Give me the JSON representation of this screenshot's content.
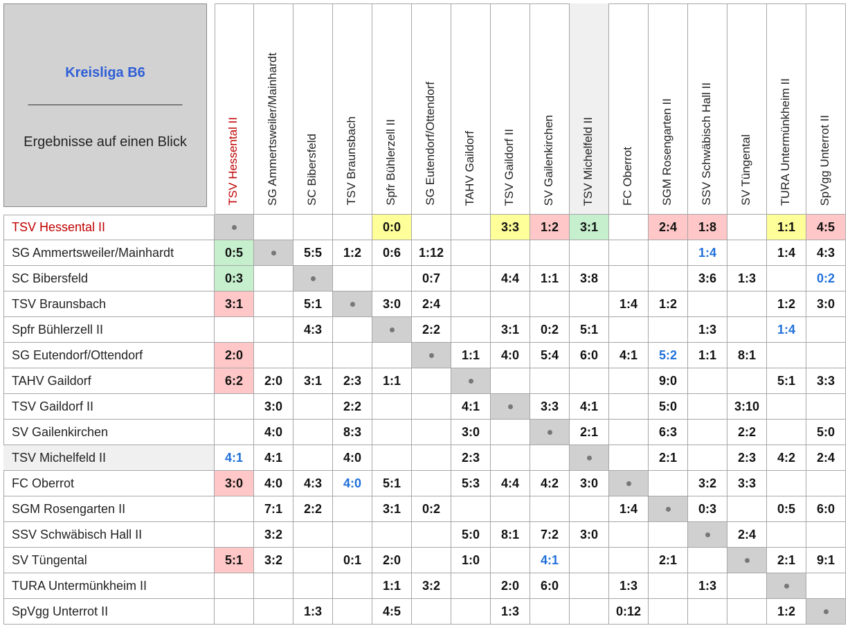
{
  "header": {
    "title": "Kreisliga B6",
    "separator": "_________________________",
    "subtitle": "Ergebnisse auf einen Blick",
    "title_color": "#2f5fd6"
  },
  "teams": [
    {
      "name": "TSV Hessental II",
      "color": "#c00000"
    },
    {
      "name": "SG Ammertsweiler/Mainhardt"
    },
    {
      "name": "SC Bibersfeld"
    },
    {
      "name": "TSV Braunsbach"
    },
    {
      "name": "Spfr Bühlerzell II"
    },
    {
      "name": "SG Eutendorf/Ottendorf"
    },
    {
      "name": "TAHV Gaildorf"
    },
    {
      "name": "TSV Gaildorf II"
    },
    {
      "name": "SV Gailenkirchen"
    },
    {
      "name": "TSV Michelfeld II",
      "fill": "#f0f0f0"
    },
    {
      "name": "FC Oberrot"
    },
    {
      "name": "SGM Rosengarten II"
    },
    {
      "name": "SSV Schwäbisch Hall II"
    },
    {
      "name": "SV Tüngental"
    },
    {
      "name": "TURA Untermünkheim II"
    },
    {
      "name": "SpVgg Unterrot II"
    }
  ],
  "results": [
    [
      null,
      null,
      null,
      null,
      {
        "text": "0:0",
        "fill": "#ffff99"
      },
      null,
      null,
      {
        "text": "3:3",
        "fill": "#ffff99"
      },
      {
        "text": "1:2",
        "fill": "#ffc7c7"
      },
      {
        "text": "3:1",
        "fill": "#c6efce"
      },
      null,
      {
        "text": "2:4",
        "fill": "#ffc7c7"
      },
      {
        "text": "1:8",
        "fill": "#ffc7c7"
      },
      null,
      {
        "text": "1:1",
        "fill": "#ffff99"
      },
      {
        "text": "4:5",
        "fill": "#ffc7c7"
      }
    ],
    [
      {
        "text": "0:5",
        "fill": "#c6efce"
      },
      null,
      "5:5",
      "1:2",
      "0:6",
      "1:12",
      null,
      null,
      null,
      null,
      null,
      null,
      {
        "text": "1:4",
        "color": "#1f6fdb"
      },
      null,
      "1:4",
      "4:3"
    ],
    [
      {
        "text": "0:3",
        "fill": "#c6efce"
      },
      null,
      null,
      null,
      null,
      "0:7",
      null,
      "4:4",
      "1:1",
      "3:8",
      null,
      null,
      "3:6",
      "1:3",
      null,
      {
        "text": "0:2",
        "color": "#1f6fdb"
      }
    ],
    [
      {
        "text": "3:1",
        "fill": "#ffc7c7"
      },
      null,
      "5:1",
      null,
      "3:0",
      "2:4",
      null,
      null,
      null,
      null,
      "1:4",
      "1:2",
      null,
      null,
      "1:2",
      "3:0"
    ],
    [
      null,
      null,
      "4:3",
      null,
      null,
      "2:2",
      null,
      "3:1",
      "0:2",
      "5:1",
      null,
      null,
      "1:3",
      null,
      {
        "text": "1:4",
        "color": "#1f6fdb"
      },
      null
    ],
    [
      {
        "text": "2:0",
        "fill": "#ffc7c7"
      },
      null,
      null,
      null,
      null,
      null,
      "1:1",
      "4:0",
      "5:4",
      "6:0",
      "4:1",
      {
        "text": "5:2",
        "color": "#1f6fdb"
      },
      "1:1",
      "8:1",
      null,
      null
    ],
    [
      {
        "text": "6:2",
        "fill": "#ffc7c7"
      },
      "2:0",
      "3:1",
      "2:3",
      "1:1",
      null,
      null,
      null,
      null,
      null,
      null,
      "9:0",
      null,
      null,
      "5:1",
      "3:3"
    ],
    [
      null,
      "3:0",
      null,
      "2:2",
      null,
      null,
      "4:1",
      null,
      "3:3",
      "4:1",
      null,
      "5:0",
      null,
      "3:10",
      null,
      null
    ],
    [
      null,
      "4:0",
      null,
      "8:3",
      null,
      null,
      "3:0",
      null,
      null,
      "2:1",
      null,
      "6:3",
      null,
      "2:2",
      null,
      "5:0"
    ],
    [
      {
        "text": "4:1",
        "color": "#1f6fdb"
      },
      "4:1",
      null,
      "4:0",
      null,
      null,
      "2:3",
      null,
      null,
      null,
      null,
      "2:1",
      null,
      "2:3",
      "4:2",
      "2:4"
    ],
    [
      {
        "text": "3:0",
        "fill": "#ffc7c7"
      },
      "4:0",
      "4:3",
      {
        "text": "4:0",
        "color": "#1f6fdb"
      },
      "5:1",
      null,
      "5:3",
      "4:4",
      "4:2",
      "3:0",
      null,
      null,
      "3:2",
      "3:3",
      null,
      null
    ],
    [
      null,
      "7:1",
      "2:2",
      null,
      "3:1",
      "0:2",
      null,
      null,
      null,
      null,
      "1:4",
      null,
      "0:3",
      null,
      "0:5",
      "6:0"
    ],
    [
      null,
      "3:2",
      null,
      null,
      null,
      null,
      "5:0",
      "8:1",
      "7:2",
      "3:0",
      null,
      null,
      null,
      "2:4",
      null,
      null
    ],
    [
      {
        "text": "5:1",
        "fill": "#ffc7c7"
      },
      "3:2",
      null,
      "0:1",
      "2:0",
      null,
      "1:0",
      null,
      {
        "text": "4:1",
        "color": "#1f6fdb"
      },
      null,
      null,
      "2:1",
      null,
      null,
      "2:1",
      "9:1"
    ],
    [
      null,
      null,
      null,
      null,
      "1:1",
      "3:2",
      null,
      "2:0",
      "6:0",
      null,
      "1:3",
      null,
      "1:3",
      null,
      null,
      null
    ],
    [
      null,
      null,
      "1:3",
      null,
      "4:5",
      null,
      null,
      "1:3",
      null,
      null,
      "0:12",
      null,
      null,
      null,
      "1:2",
      null
    ]
  ]
}
